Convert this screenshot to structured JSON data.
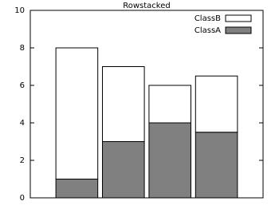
{
  "chart_data": {
    "type": "bar",
    "stacked": true,
    "title": "Rowstacked",
    "series": [
      {
        "name": "ClassA",
        "color": "#808080",
        "values": [
          1,
          3,
          4,
          3.5
        ]
      },
      {
        "name": "ClassB",
        "color": "#ffffff",
        "values": [
          7,
          4,
          2,
          3
        ]
      }
    ],
    "ylim": [
      0,
      10
    ],
    "yticks": [
      0,
      2,
      4,
      6,
      8,
      10
    ],
    "grid": false,
    "legend": "top-right"
  }
}
